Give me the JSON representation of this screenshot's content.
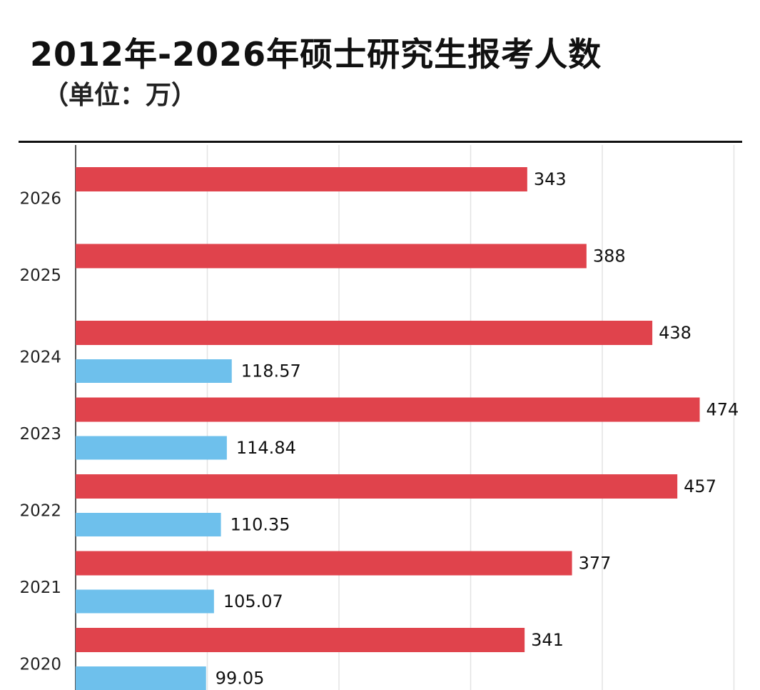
{
  "header": {
    "title": "2012年-2026年硕士研究生报考人数",
    "subtitle": "（单位：万）"
  },
  "colors": {
    "applicants": "#e0434c",
    "admitted": "#6ec0ec",
    "grid": "#e3e3e3",
    "axis": "#555555"
  },
  "chart_data": {
    "type": "bar",
    "orientation": "horizontal",
    "title": "2012年-2026年硕士研究生报考人数",
    "subtitle": "（单位：万）",
    "categories": [
      "2026",
      "2025",
      "2024",
      "2023",
      "2022",
      "2021",
      "2020"
    ],
    "series": [
      {
        "values": [
          343,
          388,
          438,
          474,
          457,
          377,
          341
        ]
      },
      {
        "values": [
          null,
          null,
          118.57,
          114.84,
          110.35,
          105.07,
          99.05
        ]
      }
    ],
    "value_labels": [
      [
        "343",
        "388",
        "438",
        "474",
        "457",
        "377",
        "341"
      ],
      [
        "",
        "",
        "118.57",
        "114.84",
        "110.35",
        "105.07",
        "99.05"
      ]
    ],
    "xlim": [
      0,
      500
    ],
    "x_gridlines": [
      0,
      100,
      200,
      300,
      400,
      500
    ],
    "grid": true,
    "legend": "none"
  }
}
